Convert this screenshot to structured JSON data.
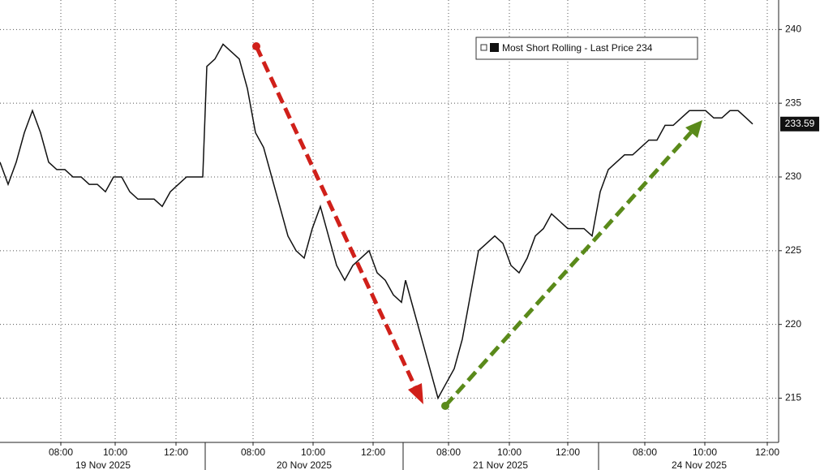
{
  "chart_data": {
    "type": "line",
    "series": [
      {
        "name": "Most Short Rolling - Last Price",
        "color": "#111111",
        "x": [
          0,
          1,
          2,
          3,
          4,
          5,
          6,
          7,
          8,
          9,
          10,
          11,
          12,
          13,
          14,
          15,
          16,
          17,
          18,
          19,
          20,
          21,
          22,
          23,
          24,
          25,
          25.5,
          26.5,
          27.5,
          28.5,
          29.5,
          30.5,
          31.5,
          32.5,
          33.5,
          34.5,
          35.5,
          36.5,
          37.5,
          38.5,
          39.5,
          40.5,
          41.5,
          42.5,
          43.5,
          44.5,
          45.5,
          46.5,
          47.5,
          48.5,
          49.5,
          50,
          51,
          52,
          53,
          54,
          55,
          56,
          57,
          58,
          59,
          60,
          61,
          62,
          63,
          64,
          65,
          66,
          67,
          68,
          69,
          70,
          71,
          72,
          73,
          74,
          75,
          76,
          77,
          78,
          79,
          80,
          81,
          82,
          83,
          84,
          85,
          86,
          87,
          88,
          89,
          90,
          91,
          92,
          92.8
        ],
        "values": [
          231,
          229.5,
          231,
          233,
          234.5,
          233,
          231,
          230.5,
          230.5,
          230,
          230,
          229.5,
          229.5,
          229,
          230,
          230,
          229,
          228.5,
          228.5,
          228.5,
          228,
          229,
          229.5,
          230,
          230,
          230,
          237.5,
          238,
          239,
          238.5,
          238,
          236,
          233,
          232,
          230,
          228,
          226,
          225,
          224.5,
          226.5,
          228,
          226,
          224,
          223,
          224,
          224.5,
          225,
          223.5,
          223,
          222,
          221.5,
          223,
          221,
          219,
          217,
          215,
          216,
          217,
          219,
          222,
          225,
          225.5,
          226,
          225.5,
          224,
          223.5,
          224.5,
          226,
          226.5,
          227.5,
          227,
          226.5,
          226.5,
          226.5,
          226,
          229,
          230.5,
          231,
          231.5,
          231.5,
          232,
          232.5,
          232.5,
          233.5,
          233.5,
          234,
          234.5,
          234.5,
          234.5,
          234,
          234,
          234.5,
          234.5,
          234,
          233.59
        ]
      }
    ],
    "xlim": [
      0,
      96
    ],
    "ylim": [
      212,
      242
    ],
    "yticks": [
      215,
      220,
      225,
      230,
      235,
      240
    ],
    "xticks": [
      {
        "value": 7.5,
        "label": "08:00"
      },
      {
        "value": 14.2,
        "label": "10:00"
      },
      {
        "value": 21.7,
        "label": "12:00"
      },
      {
        "value": 31.2,
        "label": "08:00"
      },
      {
        "value": 38.6,
        "label": "10:00"
      },
      {
        "value": 46,
        "label": "12:00"
      },
      {
        "value": 55.3,
        "label": "08:00"
      },
      {
        "value": 62.8,
        "label": "10:00"
      },
      {
        "value": 70,
        "label": "12:00"
      },
      {
        "value": 79.5,
        "label": "08:00"
      },
      {
        "value": 86.9,
        "label": "10:00"
      },
      {
        "value": 94.6,
        "label": "12:00"
      }
    ],
    "dates": [
      "19 Nov 2025",
      "20 Nov 2025",
      "21 Nov 2025",
      "24 Nov 2025"
    ],
    "grid": true
  }
}
